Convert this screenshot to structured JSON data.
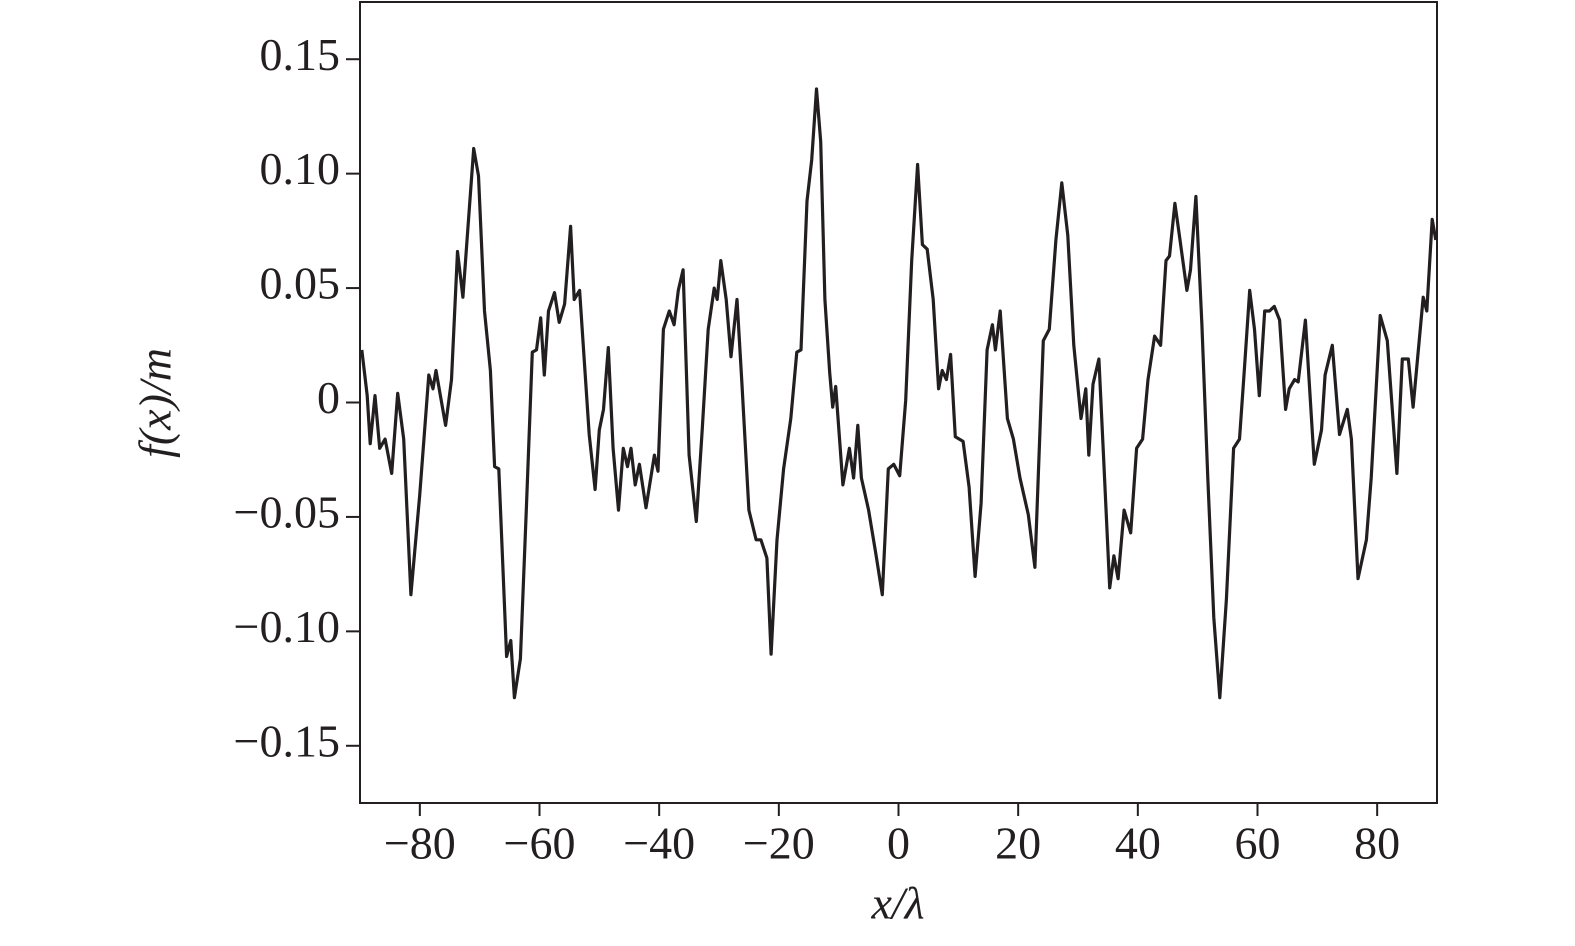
{
  "chart_data": {
    "type": "line",
    "xlabel": "x/λ",
    "ylabel": "f(x)/m",
    "xlim": [
      -90,
      90
    ],
    "ylim": [
      -0.175,
      0.175
    ],
    "xticks": [
      {
        "value": -80,
        "label": "−80"
      },
      {
        "value": -60,
        "label": "−60"
      },
      {
        "value": -40,
        "label": "−40"
      },
      {
        "value": -20,
        "label": "−20"
      },
      0,
      20,
      40,
      60,
      80
    ],
    "yticks": [
      {
        "value": -0.15,
        "label": "−0.15"
      },
      {
        "value": -0.1,
        "label": "−0.10"
      },
      {
        "value": -0.05,
        "label": "−0.05"
      },
      0,
      {
        "value": 0.05,
        "label": "0.05"
      },
      {
        "value": 0.1,
        "label": "0.10"
      },
      {
        "value": 0.15,
        "label": "0.15"
      }
    ],
    "grid": false,
    "series": [
      {
        "color": "#231f20",
        "x": [
          -89.7,
          -88.8,
          -88.3,
          -87.5,
          -86.7,
          -85.8,
          -84.7,
          -83.7,
          -82.7,
          -81.5,
          -80,
          -78.5,
          -77.8,
          -77.3,
          -75.7,
          -74.7,
          -73.7,
          -72.8,
          -72,
          -71,
          -70.2,
          -69.2,
          -68.2,
          -67.5,
          -66.8,
          -65.5,
          -64.8,
          -64.2,
          -63.2,
          -62.2,
          -61.2,
          -60.5,
          -59.8,
          -59.2,
          -58.5,
          -57.5,
          -56.7,
          -55.8,
          -54.8,
          -54.2,
          -53.3,
          -51.7,
          -50.7,
          -50,
          -49.3,
          -48.5,
          -47.7,
          -46.8,
          -46,
          -45.3,
          -44.7,
          -44,
          -43.3,
          -42.2,
          -40.8,
          -40.2,
          -39.3,
          -38.3,
          -37.5,
          -36.8,
          -36,
          -35,
          -33.8,
          -32.8,
          -31.8,
          -30.8,
          -30.3,
          -29.7,
          -28.8,
          -28,
          -27,
          -26.2,
          -25,
          -23.8,
          -23,
          -22,
          -21.3,
          -20.3,
          -19.2,
          -18,
          -17,
          -16.3,
          -15.3,
          -14.5,
          -13.7,
          -13,
          -12.3,
          -11.5,
          -11,
          -10.5,
          -9.3,
          -8.2,
          -7.5,
          -6.8,
          -6.2,
          -5,
          -3.8,
          -2.7,
          -1.7,
          -0.8,
          0.2,
          1.2,
          2.2,
          3.2,
          4,
          4.8,
          5.8,
          6.7,
          7.3,
          8,
          8.7,
          9.5,
          10.8,
          11.8,
          12.8,
          13.8,
          14.8,
          15.7,
          16.2,
          17,
          18.2,
          19.2,
          20.3,
          21.7,
          22.8,
          24.2,
          25.2,
          26.3,
          27.3,
          28.3,
          29.3,
          30.5,
          31.3,
          31.8,
          32.5,
          33.5,
          34.3,
          35.3,
          36,
          36.7,
          37.7,
          38.8,
          39.8,
          40.8,
          41.7,
          42.8,
          43.8,
          44.7,
          45.3,
          46.2,
          47,
          48.2,
          48.8,
          49.7,
          50.7,
          51.7,
          52.7,
          53.7,
          54.8,
          56,
          57,
          57.8,
          58.7,
          59.5,
          60.3,
          61.2,
          62,
          62.8,
          63.7,
          64.7,
          65.3,
          66.2,
          66.8,
          68,
          69.5,
          70.7,
          71.3,
          72.5,
          73.7,
          75,
          75.7,
          76.8,
          78.2,
          79,
          80.5,
          81.7,
          83.3,
          84.2,
          85.2,
          86,
          87.7,
          88.3,
          89.2,
          89.8
        ],
        "values": [
          0.023,
          0.003,
          -0.018,
          0.003,
          -0.02,
          -0.016,
          -0.031,
          0.004,
          -0.016,
          -0.084,
          -0.04,
          0.012,
          0.006,
          0.014,
          -0.01,
          0.01,
          0.066,
          0.046,
          0.075,
          0.111,
          0.099,
          0.04,
          0.014,
          -0.028,
          -0.029,
          -0.111,
          -0.104,
          -0.129,
          -0.112,
          -0.047,
          0.022,
          0.023,
          0.037,
          0.012,
          0.04,
          0.048,
          0.035,
          0.043,
          0.077,
          0.045,
          0.049,
          -0.014,
          -0.038,
          -0.012,
          -0.003,
          0.024,
          -0.02,
          -0.047,
          -0.02,
          -0.028,
          -0.02,
          -0.036,
          -0.027,
          -0.046,
          -0.023,
          -0.03,
          0.032,
          0.04,
          0.034,
          0.049,
          0.058,
          -0.023,
          -0.052,
          -0.012,
          0.032,
          0.05,
          0.045,
          0.062,
          0.045,
          0.02,
          0.045,
          0.01,
          -0.047,
          -0.06,
          -0.06,
          -0.068,
          -0.11,
          -0.06,
          -0.029,
          -0.007,
          0.022,
          0.023,
          0.088,
          0.106,
          0.137,
          0.114,
          0.045,
          0.013,
          -0.002,
          0.007,
          -0.036,
          -0.02,
          -0.033,
          -0.01,
          -0.033,
          -0.047,
          -0.066,
          -0.084,
          -0.029,
          -0.027,
          -0.032,
          0.001,
          0.062,
          0.104,
          0.069,
          0.067,
          0.045,
          0.006,
          0.014,
          0.01,
          0.021,
          -0.015,
          -0.017,
          -0.037,
          -0.076,
          -0.044,
          0.023,
          0.034,
          0.023,
          0.04,
          -0.007,
          -0.016,
          -0.033,
          -0.049,
          -0.072,
          0.027,
          0.032,
          0.071,
          0.096,
          0.073,
          0.025,
          -0.007,
          0.006,
          -0.023,
          0.008,
          0.019,
          -0.025,
          -0.081,
          -0.067,
          -0.077,
          -0.047,
          -0.057,
          -0.02,
          -0.016,
          0.01,
          0.029,
          0.025,
          0.062,
          0.064,
          0.087,
          0.072,
          0.049,
          0.058,
          0.09,
          0.034,
          -0.033,
          -0.094,
          -0.129,
          -0.086,
          -0.02,
          -0.016,
          0.014,
          0.049,
          0.032,
          0.003,
          0.04,
          0.04,
          0.042,
          0.036,
          -0.003,
          0.006,
          0.01,
          0.009,
          0.036,
          -0.027,
          -0.012,
          0.012,
          0.025,
          -0.014,
          -0.003,
          -0.016,
          -0.077,
          -0.06,
          -0.033,
          0.038,
          0.027,
          -0.031,
          0.019,
          0.019,
          -0.002,
          0.046,
          0.04,
          0.08,
          0.071
        ]
      }
    ]
  }
}
